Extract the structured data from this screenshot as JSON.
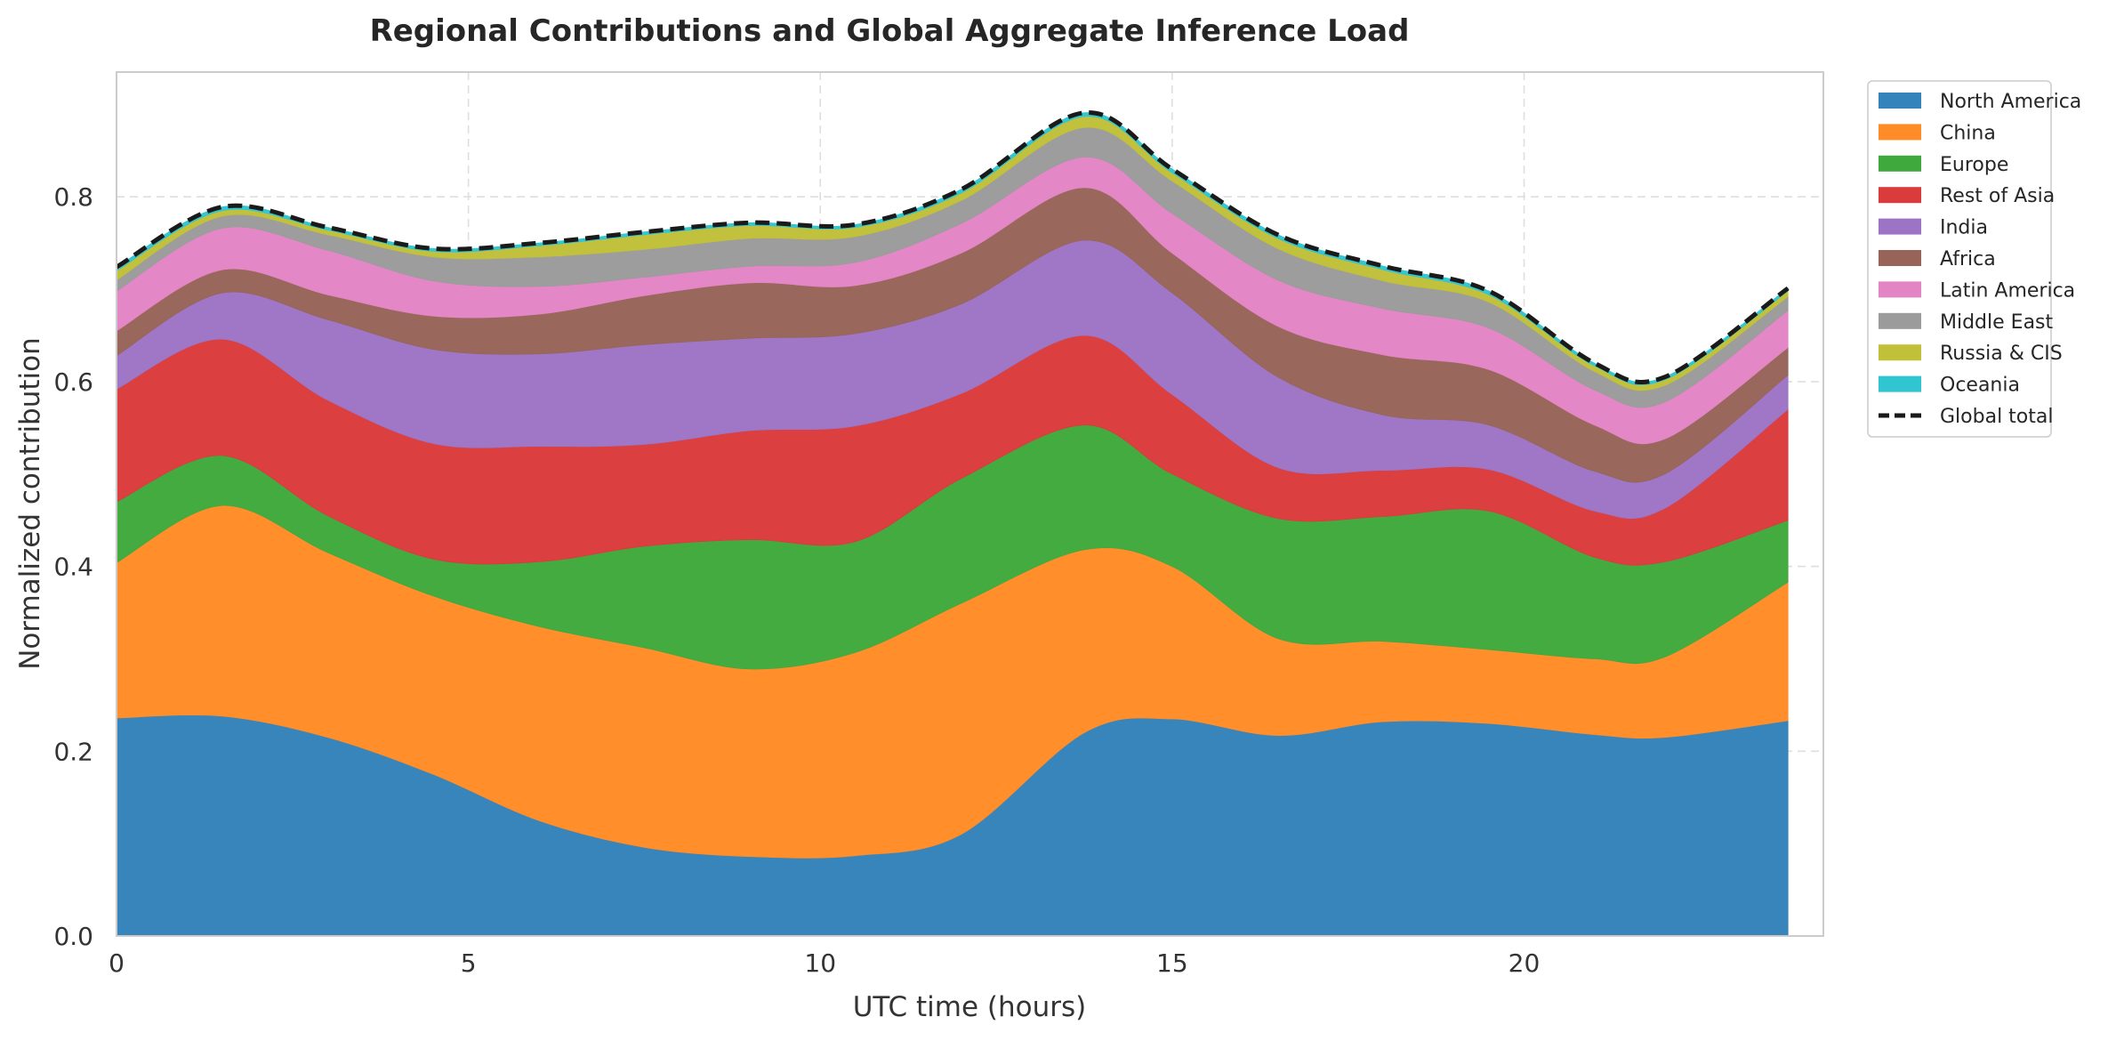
{
  "chart_data": {
    "type": "area",
    "stacked": true,
    "title": "Regional Contributions and Global Aggregate Inference Load",
    "xlabel": "UTC time (hours)",
    "ylabel": "Normalized contribution",
    "xlim": [
      0,
      24
    ],
    "ylim": [
      0,
      0.935
    ],
    "xticks": [
      0,
      5,
      10,
      15,
      20
    ],
    "yticks": [
      0.0,
      0.2,
      0.4,
      0.6,
      0.8
    ],
    "xtick_labels": [
      "0",
      "5",
      "10",
      "15",
      "20"
    ],
    "ytick_labels": [
      "0.0",
      "0.2",
      "0.4",
      "0.6",
      "0.8"
    ],
    "grid": true,
    "legend_position": "outside-top-right",
    "x": [
      0,
      1.5,
      3,
      4.5,
      6,
      7.5,
      9,
      10.5,
      12,
      13.75,
      15,
      16.5,
      18,
      19.5,
      21,
      22,
      23.75
    ],
    "series": [
      {
        "name": "North America",
        "color": "#3483bb",
        "values": [
          0.236,
          0.238,
          0.215,
          0.175,
          0.125,
          0.096,
          0.086,
          0.087,
          0.11,
          0.22,
          0.235,
          0.217,
          0.232,
          0.23,
          0.218,
          0.215,
          0.233
        ]
      },
      {
        "name": "China",
        "color": "#ff8c27",
        "values": [
          0.168,
          0.228,
          0.2,
          0.193,
          0.21,
          0.216,
          0.203,
          0.22,
          0.25,
          0.198,
          0.165,
          0.105,
          0.087,
          0.08,
          0.082,
          0.087,
          0.15
        ]
      },
      {
        "name": "Europe",
        "color": "#40a93d",
        "values": [
          0.066,
          0.054,
          0.04,
          0.04,
          0.07,
          0.11,
          0.14,
          0.12,
          0.135,
          0.135,
          0.1,
          0.13,
          0.135,
          0.15,
          0.11,
          0.103,
          0.067
        ]
      },
      {
        "name": "Rest of Asia",
        "color": "#da3b3b",
        "values": [
          0.122,
          0.126,
          0.125,
          0.125,
          0.125,
          0.11,
          0.118,
          0.125,
          0.092,
          0.097,
          0.086,
          0.055,
          0.05,
          0.045,
          0.05,
          0.058,
          0.12
        ]
      },
      {
        "name": "India",
        "color": "#9d74c5",
        "values": [
          0.036,
          0.05,
          0.087,
          0.102,
          0.1,
          0.108,
          0.1,
          0.1,
          0.097,
          0.103,
          0.11,
          0.098,
          0.06,
          0.048,
          0.043,
          0.037,
          0.037
        ]
      },
      {
        "name": "Africa",
        "color": "#98645a",
        "values": [
          0.027,
          0.025,
          0.027,
          0.036,
          0.043,
          0.053,
          0.06,
          0.052,
          0.055,
          0.057,
          0.043,
          0.055,
          0.065,
          0.06,
          0.05,
          0.038,
          0.03
        ]
      },
      {
        "name": "Latin America",
        "color": "#e385c5",
        "values": [
          0.043,
          0.045,
          0.048,
          0.038,
          0.03,
          0.02,
          0.018,
          0.025,
          0.032,
          0.033,
          0.043,
          0.05,
          0.05,
          0.045,
          0.038,
          0.04,
          0.04
        ]
      },
      {
        "name": "Middle East",
        "color": "#9b9b9b",
        "values": [
          0.012,
          0.013,
          0.017,
          0.026,
          0.032,
          0.03,
          0.03,
          0.028,
          0.025,
          0.032,
          0.035,
          0.034,
          0.03,
          0.028,
          0.02,
          0.018,
          0.015
        ]
      },
      {
        "name": "Russia & CIS",
        "color": "#c0c039",
        "values": [
          0.01,
          0.006,
          0.005,
          0.006,
          0.012,
          0.016,
          0.014,
          0.01,
          0.008,
          0.012,
          0.009,
          0.011,
          0.012,
          0.008,
          0.006,
          0.006,
          0.006
        ]
      },
      {
        "name": "Oceania",
        "color": "#30c5d1",
        "values": [
          0.004,
          0.004,
          0.003,
          0.003,
          0.003,
          0.003,
          0.003,
          0.003,
          0.004,
          0.004,
          0.004,
          0.004,
          0.004,
          0.004,
          0.003,
          0.003,
          0.003
        ]
      }
    ],
    "total": {
      "name": "Global total",
      "color": "#1a1a1a",
      "style": "dashed"
    }
  }
}
